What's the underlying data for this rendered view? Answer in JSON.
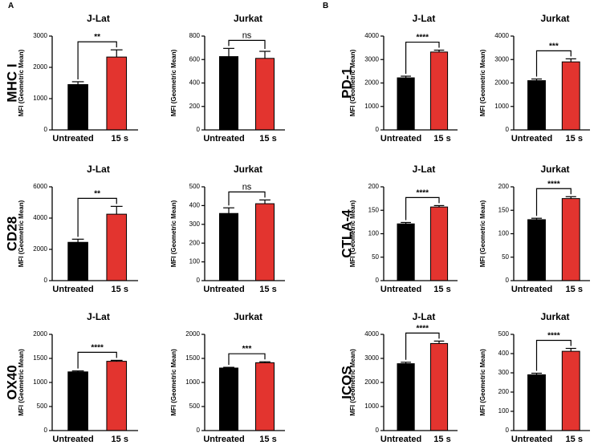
{
  "panels": [
    {
      "label": "A"
    },
    {
      "label": "B"
    }
  ],
  "colors": {
    "untreated": "#000000",
    "treated": "#e3342f",
    "axis": "#000000"
  },
  "chart_data": [
    {
      "type": "bar",
      "panel": "A",
      "row_label": "MHC I",
      "title": "J-Lat",
      "ylabel": "MFI (Geometric Mean)",
      "categories": [
        "Untreated",
        "15 s"
      ],
      "values": [
        1450,
        2330
      ],
      "errors": [
        90,
        230
      ],
      "ylim": [
        0,
        3000
      ],
      "yticks": [
        0,
        1000,
        2000,
        3000
      ],
      "yticklabels": [
        "0",
        "1000",
        "2000",
        "3000"
      ],
      "significance": "**"
    },
    {
      "type": "bar",
      "panel": "A",
      "row_label": "",
      "title": "Jurkat",
      "ylabel": "MFI (Geometric Mean)",
      "categories": [
        "Untreated",
        "15 s"
      ],
      "values": [
        625,
        610
      ],
      "errors": [
        70,
        60
      ],
      "ylim": [
        0,
        800
      ],
      "yticks": [
        0,
        200,
        400,
        600,
        800
      ],
      "yticklabels": [
        "0",
        "200",
        "400",
        "600",
        "800"
      ],
      "significance": "ns"
    },
    {
      "type": "bar",
      "panel": "B",
      "row_label": "PD-1",
      "title": "J-Lat",
      "ylabel": "MFI (Geometric Mean)",
      "categories": [
        "Untreated",
        "15 s"
      ],
      "values": [
        2220,
        3320
      ],
      "errors": [
        70,
        80
      ],
      "ylim": [
        0,
        4000
      ],
      "yticks": [
        0,
        1000,
        2000,
        3000,
        4000
      ],
      "yticklabels": [
        "0",
        "1000",
        "2000",
        "3000",
        "4000"
      ],
      "significance": "****"
    },
    {
      "type": "bar",
      "panel": "B",
      "row_label": "",
      "title": "Jurkat",
      "ylabel": "MFI (Geometric Mean)",
      "categories": [
        "Untreated",
        "15 s"
      ],
      "values": [
        2100,
        2900
      ],
      "errors": [
        70,
        130
      ],
      "ylim": [
        0,
        4000
      ],
      "yticks": [
        0,
        1000,
        2000,
        3000,
        4000
      ],
      "yticklabels": [
        "0",
        "1000",
        "2000",
        "3000",
        "4000"
      ],
      "significance": "***"
    },
    {
      "type": "bar",
      "panel": "A",
      "row_label": "CD28",
      "title": "J-Lat",
      "ylabel": "MFI (Geometric Mean)",
      "categories": [
        "Untreated",
        "15 s"
      ],
      "values": [
        2450,
        4250
      ],
      "errors": [
        200,
        500
      ],
      "ylim": [
        0,
        6000
      ],
      "yticks": [
        0,
        2000,
        4000,
        6000
      ],
      "yticklabels": [
        "0",
        "2000",
        "4000",
        "6000"
      ],
      "significance": "**"
    },
    {
      "type": "bar",
      "panel": "A",
      "row_label": "",
      "title": "Jurkat",
      "ylabel": "MFI (Geometric Mean)",
      "categories": [
        "Untreated",
        "15 s"
      ],
      "values": [
        358,
        410
      ],
      "errors": [
        30,
        20
      ],
      "ylim": [
        0,
        500
      ],
      "yticks": [
        0,
        100,
        200,
        300,
        400,
        500
      ],
      "yticklabels": [
        "0",
        "100",
        "200",
        "300",
        "400",
        "500"
      ],
      "significance": "ns"
    },
    {
      "type": "bar",
      "panel": "B",
      "row_label": "CTLA-4",
      "title": "J-Lat",
      "ylabel": "MFI (Geometric Mean)",
      "categories": [
        "Untreated",
        "15 s"
      ],
      "values": [
        121,
        157
      ],
      "errors": [
        3,
        3
      ],
      "ylim": [
        0,
        200
      ],
      "yticks": [
        0,
        50,
        100,
        150,
        200
      ],
      "yticklabels": [
        "0",
        "50",
        "100",
        "150",
        "200"
      ],
      "significance": "****"
    },
    {
      "type": "bar",
      "panel": "B",
      "row_label": "",
      "title": "Jurkat",
      "ylabel": "MFI (Geometric Mean)",
      "categories": [
        "Untreated",
        "15 s"
      ],
      "values": [
        130,
        175
      ],
      "errors": [
        3,
        4
      ],
      "ylim": [
        0,
        200
      ],
      "yticks": [
        0,
        50,
        100,
        150,
        200
      ],
      "yticklabels": [
        "0",
        "50",
        "100",
        "150",
        "200"
      ],
      "significance": "****"
    },
    {
      "type": "bar",
      "panel": "A",
      "row_label": "OX40",
      "title": "J-Lat",
      "ylabel": "MFI (Geometric Mean)",
      "categories": [
        "Untreated",
        "15 s"
      ],
      "values": [
        1220,
        1440
      ],
      "errors": [
        20,
        20
      ],
      "ylim": [
        0,
        2000
      ],
      "yticks": [
        0,
        500,
        1000,
        1500,
        2000
      ],
      "yticklabels": [
        "0",
        "500",
        "1000",
        "1500",
        "2000"
      ],
      "significance": "****"
    },
    {
      "type": "bar",
      "panel": "A",
      "row_label": "",
      "title": "Jurkat",
      "ylabel": "MFI (Geometric Mean)",
      "categories": [
        "Untreated",
        "15 s"
      ],
      "values": [
        1300,
        1410
      ],
      "errors": [
        15,
        20
      ],
      "ylim": [
        0,
        2000
      ],
      "yticks": [
        0,
        500,
        1000,
        1500,
        2000
      ],
      "yticklabels": [
        "0",
        "500",
        "1000",
        "1500",
        "2000"
      ],
      "significance": "***"
    },
    {
      "type": "bar",
      "panel": "B",
      "row_label": "ICOS",
      "title": "J-Lat",
      "ylabel": "MFI (Geometric Mean)",
      "categories": [
        "Untreated",
        "15 s"
      ],
      "values": [
        2780,
        3620
      ],
      "errors": [
        60,
        100
      ],
      "ylim": [
        0,
        4000
      ],
      "yticks": [
        0,
        1000,
        2000,
        3000,
        4000
      ],
      "yticklabels": [
        "0",
        "1000",
        "2000",
        "3000",
        "4000"
      ],
      "significance": "****"
    },
    {
      "type": "bar",
      "panel": "B",
      "row_label": "",
      "title": "Jurkat",
      "ylabel": "MFI (Geometric Mean)",
      "categories": [
        "Untreated",
        "15 s"
      ],
      "values": [
        290,
        412
      ],
      "errors": [
        8,
        15
      ],
      "ylim": [
        0,
        500
      ],
      "yticks": [
        0,
        100,
        200,
        300,
        400,
        500
      ],
      "yticklabels": [
        "0",
        "100",
        "200",
        "300",
        "400",
        "500"
      ],
      "significance": "****"
    }
  ]
}
